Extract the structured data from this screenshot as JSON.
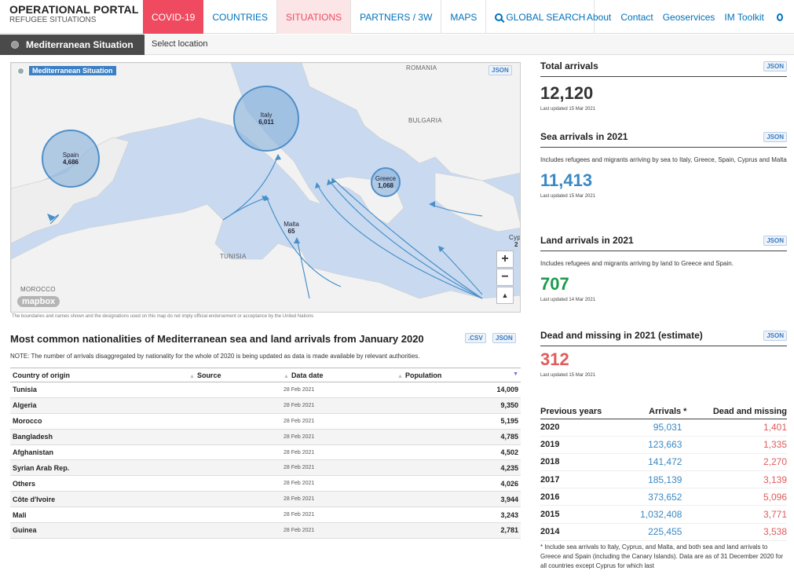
{
  "brand": {
    "title": "OPERATIONAL PORTAL",
    "subtitle": "REFUGEE SITUATIONS"
  },
  "nav": {
    "covid": "COVID-19",
    "countries": "COUNTRIES",
    "situations": "SITUATIONS",
    "partners": "PARTNERS / 3W",
    "maps": "MAPS",
    "global_search": "GLOBAL SEARCH"
  },
  "nav2": {
    "about": "About",
    "contact": "Contact",
    "geoservices": "Geoservices",
    "im_toolkit": "IM Toolkit"
  },
  "subbar": {
    "situation": "Mediterranean Situation",
    "select_location": "Select location"
  },
  "map": {
    "title": "Mediterranean Situation",
    "json": "JSON",
    "labels": {
      "romania": "ROMANIA",
      "bulgaria": "BULGARIA",
      "tunisia": "TUNISIA",
      "morocco": "MOROCCO",
      "cyprus": "Cyp",
      "cyprus_value": "2"
    },
    "bubbles": [
      {
        "name": "Italy",
        "value": "6,011"
      },
      {
        "name": "Spain",
        "value": "4,686"
      },
      {
        "name": "Greece",
        "value": "1,068"
      },
      {
        "name": "Malta",
        "value": "65"
      }
    ],
    "zoom_in": "+",
    "zoom_out": "−",
    "compass": "▲",
    "mapbox": "mapbox",
    "disclaimer": "The boundaries and names shown and the designations used on this map do not imply official endorsement or acceptance by the United Nations"
  },
  "nationalities": {
    "title": "Most common nationalities of Mediterranean sea and land arrivals from January 2020",
    "csv": ".CSV",
    "json": "JSON",
    "note": "NOTE: The number of arrivals disaggregated by nationality for the whole of 2020 is being updated as data is made available by relevant authorities.",
    "headers": {
      "country": "Country of origin",
      "source": "Source",
      "date": "Data date",
      "population": "Population"
    },
    "rows": [
      {
        "country": "Tunisia",
        "date": "28 Feb 2021",
        "population": "14,009"
      },
      {
        "country": "Algeria",
        "date": "28 Feb 2021",
        "population": "9,350"
      },
      {
        "country": "Morocco",
        "date": "28 Feb 2021",
        "population": "5,195"
      },
      {
        "country": "Bangladesh",
        "date": "28 Feb 2021",
        "population": "4,785"
      },
      {
        "country": "Afghanistan",
        "date": "28 Feb 2021",
        "population": "4,502"
      },
      {
        "country": "Syrian Arab Rep.",
        "date": "28 Feb 2021",
        "population": "4,235"
      },
      {
        "country": "Others",
        "date": "28 Feb 2021",
        "population": "4,026"
      },
      {
        "country": "Côte d'Ivoire",
        "date": "28 Feb 2021",
        "population": "3,944"
      },
      {
        "country": "Mali",
        "date": "28 Feb 2021",
        "population": "3,243"
      },
      {
        "country": "Guinea",
        "date": "28 Feb 2021",
        "population": "2,781"
      }
    ]
  },
  "stats": {
    "json": "JSON",
    "total": {
      "title": "Total arrivals",
      "value": "12,120",
      "updated": "Last updated 15 Mar 2021",
      "color": "#333333"
    },
    "sea": {
      "title": "Sea arrivals in 2021",
      "desc": "Includes refugees and migrants arriving by sea to Italy, Greece, Spain, Cyprus and Malta",
      "value": "11,413",
      "updated": "Last updated 15 Mar 2021",
      "color": "#3a88c4"
    },
    "land": {
      "title": "Land arrivals in 2021",
      "desc": "Includes refugees and migrants arriving by land to Greece and Spain.",
      "value": "707",
      "updated": "Last updated 14 Mar 2021",
      "color": "#1a9a4a"
    },
    "dead": {
      "title": "Dead and missing in 2021 (estimate)",
      "value": "312",
      "updated": "Last updated 15 Mar 2021",
      "color": "#e05b5b"
    }
  },
  "previous": {
    "headers": {
      "years": "Previous years",
      "arrivals": "Arrivals *",
      "dead": "Dead and missing"
    },
    "rows": [
      {
        "year": "2020",
        "arrivals": "95,031",
        "dead": "1,401"
      },
      {
        "year": "2019",
        "arrivals": "123,663",
        "dead": "1,335"
      },
      {
        "year": "2018",
        "arrivals": "141,472",
        "dead": "2,270"
      },
      {
        "year": "2017",
        "arrivals": "185,139",
        "dead": "3,139"
      },
      {
        "year": "2016",
        "arrivals": "373,652",
        "dead": "5,096"
      },
      {
        "year": "2015",
        "arrivals": "1,032,408",
        "dead": "3,771"
      },
      {
        "year": "2014",
        "arrivals": "225,455",
        "dead": "3,538"
      }
    ],
    "note": "* Include sea arrivals to Italy, Cyprus, and Malta, and both sea and land arrivals to Greece and Spain (including the Canary Islands). Data are as of 31 December 2020 for all countries except Cyprus for which last"
  }
}
